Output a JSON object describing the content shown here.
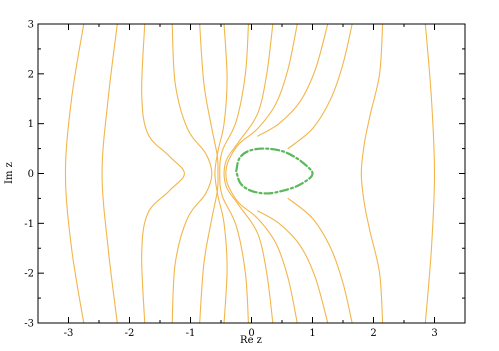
{
  "chart_data": {
    "type": "line",
    "title": "",
    "xlabel": "Re z",
    "ylabel": "Im z",
    "xlim": [
      -3.5,
      3.5
    ],
    "ylim": [
      -3,
      3
    ],
    "xticks": [
      -3,
      -2,
      -1,
      0,
      1,
      2,
      3
    ],
    "yticks": [
      -3,
      -2,
      -1,
      0,
      1,
      2,
      3
    ],
    "xtick_labels": [
      "-3",
      "-2",
      "-1",
      "0",
      "1",
      "2",
      "3"
    ],
    "ytick_labels": [
      "-3",
      "-2",
      "-1",
      "0",
      "1",
      "2",
      "3"
    ],
    "grid": false,
    "legend": "none",
    "colors": {
      "curves": "#f2b64b",
      "dashed": "#5cb85c"
    },
    "series": [
      {
        "style": "solid",
        "color": "#f2b64b",
        "points": [
          [
            -2.75,
            3
          ],
          [
            -2.95,
            1.5
          ],
          [
            -3.05,
            0
          ],
          [
            -2.95,
            -1.5
          ],
          [
            -2.75,
            -3
          ]
        ]
      },
      {
        "style": "solid",
        "color": "#f2b64b",
        "points": [
          [
            -2.2,
            3
          ],
          [
            -2.35,
            1.5
          ],
          [
            -2.45,
            0
          ],
          [
            -2.35,
            -1.5
          ],
          [
            -2.2,
            -3
          ]
        ]
      },
      {
        "style": "solid",
        "color": "#f2b64b",
        "points": [
          [
            -1.75,
            3
          ],
          [
            -1.8,
            1.6
          ],
          [
            -1.7,
            0.8
          ],
          [
            -1.35,
            0.35
          ],
          [
            -1.1,
            0
          ],
          [
            -1.35,
            -0.35
          ],
          [
            -1.7,
            -0.8
          ],
          [
            -1.8,
            -1.6
          ],
          [
            -1.75,
            -3
          ]
        ]
      },
      {
        "style": "solid",
        "color": "#f2b64b",
        "points": [
          [
            -1.3,
            3
          ],
          [
            -1.25,
            1.8
          ],
          [
            -1.05,
            0.9
          ],
          [
            -0.75,
            0.4
          ],
          [
            -0.65,
            0
          ],
          [
            -0.75,
            -0.4
          ],
          [
            -1.05,
            -0.9
          ],
          [
            -1.25,
            -1.8
          ],
          [
            -1.3,
            -3
          ]
        ]
      },
      {
        "style": "solid",
        "color": "#f2b64b",
        "points": [
          [
            -0.85,
            3
          ],
          [
            -0.78,
            1.8
          ],
          [
            -0.65,
            0.9
          ],
          [
            -0.56,
            0.35
          ],
          [
            -0.55,
            0
          ],
          [
            -0.56,
            -0.35
          ],
          [
            -0.65,
            -0.9
          ],
          [
            -0.78,
            -1.8
          ],
          [
            -0.85,
            -3
          ]
        ]
      },
      {
        "style": "solid",
        "color": "#f2b64b",
        "points": [
          [
            -0.45,
            3
          ],
          [
            -0.4,
            1.9
          ],
          [
            -0.45,
            1.0
          ],
          [
            -0.55,
            0.45
          ],
          [
            -0.6,
            0
          ],
          [
            -0.55,
            -0.45
          ],
          [
            -0.45,
            -1.0
          ],
          [
            -0.4,
            -1.9
          ],
          [
            -0.45,
            -3
          ]
        ]
      },
      {
        "style": "solid",
        "color": "#f2b64b",
        "points": [
          [
            -0.05,
            3
          ],
          [
            -0.1,
            2.0
          ],
          [
            -0.25,
            1.05
          ],
          [
            -0.48,
            0.45
          ],
          [
            -0.52,
            0
          ],
          [
            -0.48,
            -0.45
          ],
          [
            -0.25,
            -1.05
          ],
          [
            -0.1,
            -2.0
          ],
          [
            -0.05,
            -3
          ]
        ]
      },
      {
        "style": "solid",
        "color": "#f2b64b",
        "points": [
          [
            0.35,
            3
          ],
          [
            0.25,
            2.0
          ],
          [
            0.1,
            1.2
          ],
          [
            -0.2,
            0.65
          ],
          [
            -0.4,
            0.3
          ],
          [
            -0.45,
            0
          ],
          [
            -0.4,
            -0.3
          ],
          [
            -0.2,
            -0.65
          ],
          [
            0.1,
            -1.2
          ],
          [
            0.25,
            -2.0
          ],
          [
            0.35,
            -3
          ]
        ]
      },
      {
        "style": "solid",
        "color": "#f2b64b",
        "points": [
          [
            0.75,
            3
          ],
          [
            0.6,
            2.1
          ],
          [
            0.4,
            1.4
          ],
          [
            0.1,
            0.9
          ],
          [
            -0.2,
            0.6
          ],
          [
            -0.38,
            0.25
          ],
          [
            -0.42,
            0
          ],
          [
            -0.38,
            -0.25
          ],
          [
            -0.2,
            -0.6
          ],
          [
            0.1,
            -0.9
          ],
          [
            0.4,
            -1.4
          ],
          [
            0.6,
            -2.1
          ],
          [
            0.75,
            -3
          ]
        ]
      },
      {
        "style": "solid",
        "color": "#f2b64b",
        "points": [
          [
            1.25,
            3
          ],
          [
            1.05,
            2.1
          ],
          [
            0.8,
            1.45
          ],
          [
            0.45,
            1.0
          ],
          [
            0.1,
            0.75
          ]
        ]
      },
      {
        "style": "solid",
        "color": "#f2b64b",
        "points": [
          [
            1.25,
            -3
          ],
          [
            1.05,
            -2.1
          ],
          [
            0.8,
            -1.45
          ],
          [
            0.45,
            -1.0
          ],
          [
            0.1,
            -0.75
          ]
        ]
      },
      {
        "style": "solid",
        "color": "#f2b64b",
        "points": [
          [
            1.65,
            3
          ],
          [
            1.5,
            2.2
          ],
          [
            1.3,
            1.5
          ],
          [
            1.0,
            0.9
          ],
          [
            0.6,
            0.5
          ]
        ]
      },
      {
        "style": "solid",
        "color": "#f2b64b",
        "points": [
          [
            1.65,
            -3
          ],
          [
            1.5,
            -2.2
          ],
          [
            1.3,
            -1.5
          ],
          [
            1.0,
            -0.9
          ],
          [
            0.6,
            -0.5
          ]
        ]
      },
      {
        "style": "solid",
        "color": "#f2b64b",
        "points": [
          [
            2.15,
            3
          ],
          [
            2.1,
            2.0
          ],
          [
            1.95,
            1.2
          ],
          [
            1.85,
            0.6
          ],
          [
            1.8,
            0
          ],
          [
            1.85,
            -0.6
          ],
          [
            1.95,
            -1.2
          ],
          [
            2.1,
            -2.0
          ],
          [
            2.15,
            -3
          ]
        ]
      },
      {
        "style": "solid",
        "color": "#f2b64b",
        "points": [
          [
            2.85,
            3
          ],
          [
            2.95,
            1.5
          ],
          [
            3.0,
            0
          ],
          [
            2.95,
            -1.5
          ],
          [
            2.85,
            -3
          ]
        ]
      },
      {
        "style": "dash-dot",
        "color": "#5cb85c",
        "points": [
          [
            -0.25,
            0.05
          ],
          [
            -0.2,
            0.3
          ],
          [
            -0.05,
            0.45
          ],
          [
            0.2,
            0.5
          ],
          [
            0.5,
            0.45
          ],
          [
            0.75,
            0.3
          ],
          [
            0.95,
            0.1
          ],
          [
            1.0,
            0
          ],
          [
            0.95,
            -0.1
          ],
          [
            0.75,
            -0.25
          ],
          [
            0.5,
            -0.35
          ],
          [
            0.25,
            -0.4
          ],
          [
            0.0,
            -0.35
          ],
          [
            -0.18,
            -0.2
          ],
          [
            -0.25,
            0.05
          ]
        ]
      }
    ]
  }
}
